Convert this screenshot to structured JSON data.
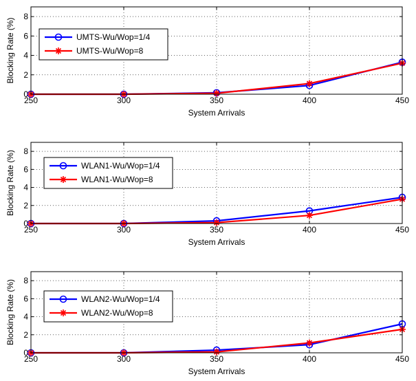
{
  "chart_data": [
    {
      "type": "line",
      "xlabel": "System Arrivals",
      "ylabel": "Blocking Rate (%)",
      "xlim": [
        250,
        450
      ],
      "ylim": [
        0,
        9
      ],
      "xticks": [
        "250",
        "300",
        "350",
        "400",
        "450"
      ],
      "yticks": [
        "0",
        "2",
        "4",
        "6",
        "8"
      ],
      "grid": true,
      "legend_position": "upper-left",
      "x": [
        250,
        300,
        350,
        400,
        450
      ],
      "series": [
        {
          "name": "UMTS-Wu/Wop=1/4",
          "color": "#0000ff",
          "marker": "circle",
          "values": [
            0.0,
            0.0,
            0.15,
            0.9,
            3.3
          ]
        },
        {
          "name": "UMTS-Wu/Wop=8",
          "color": "#ff0000",
          "marker": "star",
          "values": [
            0.0,
            0.0,
            0.1,
            1.1,
            3.2
          ]
        }
      ]
    },
    {
      "type": "line",
      "xlabel": "System Arrivals",
      "ylabel": "Blocking Rate (%)",
      "xlim": [
        250,
        450
      ],
      "ylim": [
        0,
        9
      ],
      "xticks": [
        "250",
        "300",
        "350",
        "400",
        "450"
      ],
      "yticks": [
        "0",
        "2",
        "4",
        "6",
        "8"
      ],
      "grid": true,
      "legend_position": "upper-left",
      "x": [
        250,
        300,
        350,
        400,
        450
      ],
      "series": [
        {
          "name": "WLAN1-Wu/Wop=1/4",
          "color": "#0000ff",
          "marker": "circle",
          "values": [
            0.0,
            0.0,
            0.3,
            1.4,
            2.9
          ]
        },
        {
          "name": "WLAN1-Wu/Wop=8",
          "color": "#ff0000",
          "marker": "star",
          "values": [
            0.0,
            0.0,
            0.1,
            0.9,
            2.7
          ]
        }
      ]
    },
    {
      "type": "line",
      "xlabel": "System Arrivals",
      "ylabel": "Blocking Rate (%)",
      "xlim": [
        250,
        450
      ],
      "ylim": [
        0,
        9
      ],
      "xticks": [
        "250",
        "300",
        "350",
        "400",
        "450"
      ],
      "yticks": [
        "0",
        "2",
        "4",
        "6",
        "8"
      ],
      "grid": true,
      "legend_position": "upper-left",
      "x": [
        250,
        300,
        350,
        400,
        450
      ],
      "series": [
        {
          "name": "WLAN2-Wu/Wop=1/4",
          "color": "#0000ff",
          "marker": "circle",
          "values": [
            0.0,
            0.0,
            0.3,
            0.9,
            3.2
          ]
        },
        {
          "name": "WLAN2-Wu/Wop=8",
          "color": "#ff0000",
          "marker": "star",
          "values": [
            0.0,
            0.0,
            0.1,
            1.1,
            2.6
          ]
        }
      ]
    }
  ]
}
